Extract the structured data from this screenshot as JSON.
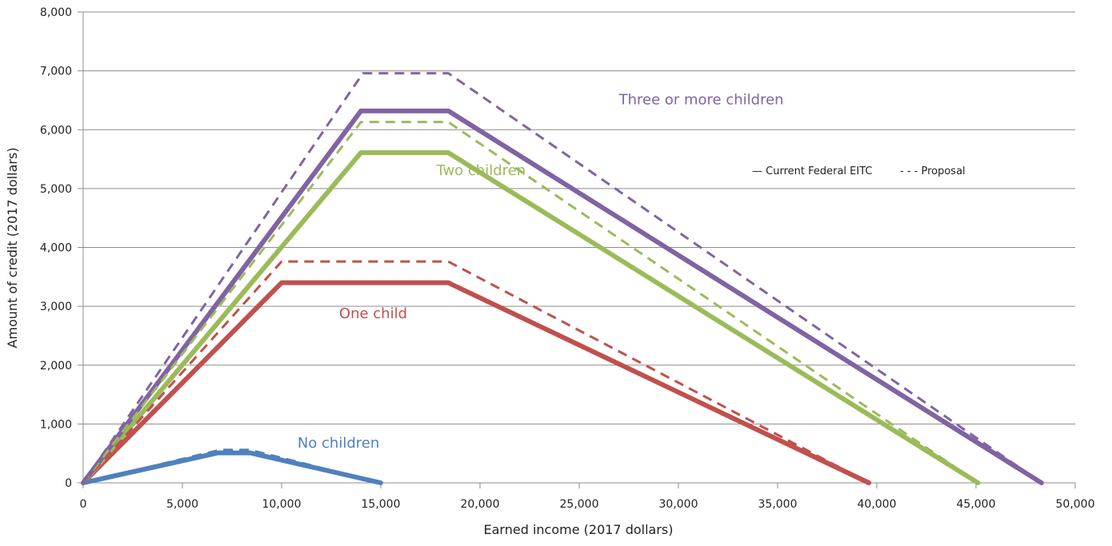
{
  "chart_data": {
    "type": "line",
    "xlabel": "Earned income (2017 dollars)",
    "ylabel": "Amount of credit (2017 dollars)",
    "xlim": [
      0,
      50000
    ],
    "ylim": [
      0,
      8000
    ],
    "x_ticks": [
      0,
      5000,
      10000,
      15000,
      20000,
      25000,
      30000,
      35000,
      40000,
      45000,
      50000
    ],
    "x_tick_labels": [
      "0",
      "5,000",
      "10,000",
      "15,000",
      "20,000",
      "25,000",
      "30,000",
      "35,000",
      "40,000",
      "45,000",
      "50,000"
    ],
    "y_ticks": [
      0,
      1000,
      2000,
      3000,
      4000,
      5000,
      6000,
      7000,
      8000
    ],
    "y_tick_labels": [
      "0",
      "1,000",
      "2,000",
      "3,000",
      "4,000",
      "5,000",
      "6,000",
      "7,000",
      "8,000"
    ],
    "grid": "horizontal",
    "legend_position": "right",
    "legend": [
      {
        "label": "— Current Federal EITC",
        "style": "solid"
      },
      {
        "label": "- - - Proposal",
        "style": "dashed"
      }
    ],
    "series": [
      {
        "name": "No children",
        "variant": "current",
        "color": "#4f81bd",
        "x": [
          0,
          6800,
          8400,
          15000
        ],
        "y": [
          0,
          510,
          510,
          0
        ]
      },
      {
        "name": "No children",
        "variant": "proposal",
        "color": "#4f81bd",
        "x": [
          0,
          6900,
          8400,
          15000
        ],
        "y": [
          0,
          560,
          560,
          0
        ]
      },
      {
        "name": "One child",
        "variant": "current",
        "color": "#c0504d",
        "x": [
          0,
          10000,
          18400,
          39600
        ],
        "y": [
          0,
          3400,
          3400,
          0
        ]
      },
      {
        "name": "One child",
        "variant": "proposal",
        "color": "#c0504d",
        "x": [
          0,
          10000,
          18400,
          39600
        ],
        "y": [
          0,
          3760,
          3760,
          0
        ]
      },
      {
        "name": "Two children",
        "variant": "current",
        "color": "#9bbb59",
        "x": [
          0,
          14000,
          18400,
          45100
        ],
        "y": [
          0,
          5610,
          5610,
          0
        ]
      },
      {
        "name": "Two children",
        "variant": "proposal",
        "color": "#9bbb59",
        "x": [
          0,
          14000,
          18400,
          45100
        ],
        "y": [
          0,
          6130,
          6130,
          0
        ]
      },
      {
        "name": "Three or more children",
        "variant": "current",
        "color": "#8064a2",
        "x": [
          0,
          14000,
          18400,
          48300
        ],
        "y": [
          0,
          6320,
          6320,
          0
        ]
      },
      {
        "name": "Three or more children",
        "variant": "proposal",
        "color": "#8064a2",
        "x": [
          0,
          14100,
          18400,
          48300
        ],
        "y": [
          0,
          6960,
          6960,
          0
        ]
      }
    ],
    "annotations": [
      {
        "text": "Three or more children",
        "color": "#8064a2",
        "x": 27000,
        "y": 6430
      },
      {
        "text": "Two children",
        "color": "#9bbb59",
        "x": 17800,
        "y": 5230
      },
      {
        "text": "One child",
        "color": "#c0504d",
        "x": 12900,
        "y": 2800
      },
      {
        "text": "No children",
        "color": "#4f81bd",
        "x": 10800,
        "y": 600
      }
    ]
  }
}
